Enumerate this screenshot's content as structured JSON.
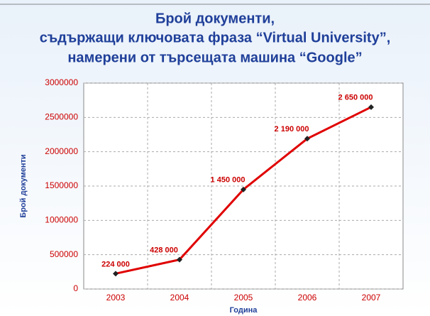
{
  "chart_data": {
    "type": "line",
    "title": [
      "Брой документи,",
      "съдържащи ключовата фраза “Virtual University”,",
      "намерени  от  търсещата машина “Google”"
    ],
    "x_label": "Година",
    "y_label": "Брой документи",
    "categories": [
      "2003",
      "2004",
      "2005",
      "2006",
      "2007"
    ],
    "values": [
      224000,
      428000,
      1450000,
      2190000,
      2650000
    ],
    "value_labels": [
      "224 000",
      "428 000",
      "1 450 000",
      "2 190 000",
      "2 650 000"
    ],
    "color": "#e00000",
    "marker_color": "#222222",
    "ylim": [
      0,
      3000000
    ],
    "yticks": [
      0,
      500000,
      1000000,
      1500000,
      2000000,
      2500000,
      3000000
    ],
    "grid": true
  }
}
